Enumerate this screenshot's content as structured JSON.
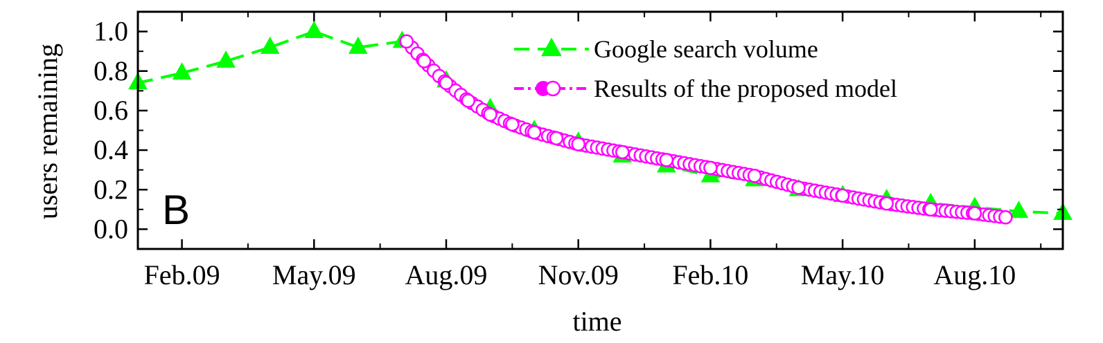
{
  "chart_data": {
    "type": "line",
    "panel_label": "B",
    "xlabel": "time",
    "ylabel": "users remaining",
    "xlim_months": [
      0.0,
      21.0
    ],
    "x_unit": "months since Jan.09",
    "ylim": [
      -0.1,
      1.1
    ],
    "x_ticks": [
      {
        "label": "Feb.09",
        "month": 1
      },
      {
        "label": "May.09",
        "month": 4
      },
      {
        "label": "Aug.09",
        "month": 7
      },
      {
        "label": "Nov.09",
        "month": 10
      },
      {
        "label": "Feb.10",
        "month": 13
      },
      {
        "label": "May.10",
        "month": 16
      },
      {
        "label": "Aug.10",
        "month": 19
      }
    ],
    "x_minor_ticks": [
      2.5,
      5.5,
      8.5,
      11.5,
      14.5,
      17.5,
      20.5
    ],
    "y_ticks": [
      {
        "label": "0.0",
        "value": 0.0
      },
      {
        "label": "0.2",
        "value": 0.2
      },
      {
        "label": "0.4",
        "value": 0.4
      },
      {
        "label": "0.6",
        "value": 0.6
      },
      {
        "label": "0.8",
        "value": 0.8
      },
      {
        "label": "1.0",
        "value": 1.0
      }
    ],
    "legend_position": "top-right",
    "series": [
      {
        "name": "Google search volume",
        "color": "#00ff00",
        "line_style": "dashed",
        "marker": "triangle",
        "x": [
          0,
          1,
          2,
          3,
          4,
          5,
          6,
          7,
          8,
          9,
          10,
          11,
          12,
          13,
          14,
          15,
          16,
          17,
          18,
          19,
          20,
          21
        ],
        "y": [
          0.74,
          0.79,
          0.85,
          0.92,
          1.0,
          0.92,
          0.95,
          0.75,
          0.61,
          0.5,
          0.44,
          0.37,
          0.32,
          0.27,
          0.25,
          0.2,
          0.17,
          0.15,
          0.13,
          0.11,
          0.09,
          0.08
        ]
      },
      {
        "name": "Results of the proposed model",
        "color": "#ff00ff",
        "line_style": "dash-dot",
        "marker": "open-circle",
        "x": [
          6.1,
          6.5,
          7.0,
          7.5,
          8.0,
          8.5,
          9.0,
          9.5,
          10.0,
          11.0,
          12.0,
          13.0,
          14.0,
          15.0,
          16.0,
          17.0,
          18.0,
          19.0,
          19.7
        ],
        "y": [
          0.95,
          0.85,
          0.74,
          0.65,
          0.58,
          0.53,
          0.49,
          0.46,
          0.43,
          0.39,
          0.35,
          0.31,
          0.27,
          0.21,
          0.17,
          0.13,
          0.1,
          0.08,
          0.06
        ]
      }
    ]
  }
}
